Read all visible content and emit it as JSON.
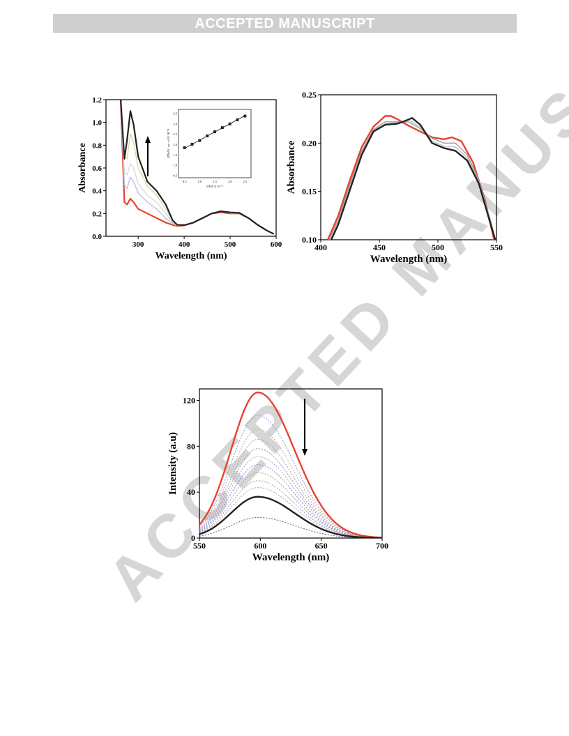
{
  "header": {
    "banner": "ACCEPTED MANUSCRIPT"
  },
  "watermark": "ACCEPTED MANUSCRIPT",
  "chart_data": [
    {
      "type": "line",
      "xlabel": "Wavelength (nm)",
      "ylabel": "Absorbance",
      "xlim": [
        230,
        600
      ],
      "ylim": [
        0,
        1.2
      ],
      "xticks": [
        300,
        400,
        500,
        600
      ],
      "yticks": [
        0.0,
        0.2,
        0.4,
        0.6,
        0.8,
        1.0,
        1.2
      ],
      "yticklabels": [
        "0.0",
        "0.2",
        "0.4",
        "0.6",
        "0.8",
        "1.0",
        "1.2"
      ],
      "annotation": "upward arrow: absorbance increases with DNA",
      "series": [
        {
          "color": "#e8432d",
          "x": [
            262,
            270,
            276,
            283,
            290,
            300,
            320,
            340,
            360,
            375,
            385,
            400,
            420,
            440,
            460,
            480,
            500,
            520,
            540,
            560,
            580,
            595
          ],
          "y": [
            1.2,
            0.3,
            0.28,
            0.33,
            0.3,
            0.24,
            0.2,
            0.16,
            0.12,
            0.1,
            0.09,
            0.095,
            0.12,
            0.16,
            0.2,
            0.21,
            0.2,
            0.2,
            0.16,
            0.1,
            0.05,
            0.02
          ]
        },
        {
          "color": "#b7c1e0",
          "x": [
            262,
            270,
            276,
            283,
            290,
            300,
            320,
            340,
            360,
            375,
            385,
            400,
            420,
            440,
            460,
            480,
            500,
            520,
            540,
            560,
            580,
            595
          ],
          "y": [
            1.2,
            0.45,
            0.42,
            0.52,
            0.48,
            0.38,
            0.3,
            0.24,
            0.16,
            0.11,
            0.095,
            0.098,
            0.12,
            0.16,
            0.2,
            0.22,
            0.205,
            0.2,
            0.16,
            0.1,
            0.05,
            0.02
          ]
        },
        {
          "color": "#d9d9d9",
          "x": [
            262,
            270,
            276,
            283,
            290,
            300,
            320,
            340,
            360,
            375,
            385,
            400,
            420,
            440,
            460,
            480,
            500,
            520,
            540,
            560,
            580,
            595
          ],
          "y": [
            1.2,
            0.56,
            0.54,
            0.64,
            0.6,
            0.46,
            0.36,
            0.3,
            0.2,
            0.12,
            0.097,
            0.098,
            0.12,
            0.16,
            0.2,
            0.22,
            0.21,
            0.205,
            0.16,
            0.1,
            0.05,
            0.02
          ]
        },
        {
          "color": "#cfe0a8",
          "x": [
            262,
            270,
            276,
            283,
            290,
            300,
            320,
            340,
            360,
            375,
            385,
            400,
            420,
            440,
            460,
            480,
            500,
            520,
            540,
            560,
            580,
            595
          ],
          "y": [
            1.2,
            0.7,
            0.68,
            0.9,
            0.82,
            0.6,
            0.44,
            0.36,
            0.24,
            0.13,
            0.098,
            0.098,
            0.12,
            0.16,
            0.2,
            0.22,
            0.21,
            0.21,
            0.16,
            0.1,
            0.05,
            0.02
          ]
        },
        {
          "color": "#222222",
          "x": [
            262,
            270,
            276,
            283,
            290,
            300,
            320,
            340,
            360,
            375,
            385,
            400,
            420,
            440,
            460,
            480,
            500,
            520,
            540,
            560,
            580,
            595
          ],
          "y": [
            1.2,
            0.68,
            0.85,
            1.1,
            0.98,
            0.7,
            0.48,
            0.4,
            0.28,
            0.14,
            0.1,
            0.098,
            0.12,
            0.16,
            0.2,
            0.22,
            0.21,
            0.205,
            0.16,
            0.1,
            0.05,
            0.02
          ]
        }
      ],
      "inset": {
        "type": "scatter",
        "xlabel": "DNA X 10⁻⁵",
        "ylabel": "[DNA] / εa - εf X 10⁻¹¹",
        "xlim": [
          0.3,
          2.7
        ],
        "ylim": [
          0.4,
          3.7
        ],
        "xticks": [
          0.5,
          1.0,
          1.5,
          2.0,
          2.5
        ],
        "xticklabels": [
          "0.5",
          "1.0",
          "1.5",
          "2.0",
          "2.5"
        ],
        "yticks": [
          0.5,
          1.0,
          1.5,
          2.0,
          2.5,
          3.0,
          3.5
        ],
        "yticklabels": [
          "0.5",
          "1.0",
          "1.5",
          "2.0",
          "2.5",
          "3.0",
          "3.5"
        ],
        "x": [
          0.5,
          0.75,
          1.0,
          1.25,
          1.5,
          1.75,
          2.0,
          2.25,
          2.5
        ],
        "y": [
          1.85,
          2.02,
          2.2,
          2.42,
          2.62,
          2.82,
          3.0,
          3.2,
          3.38
        ],
        "fit": [
          [
            0.5,
            1.82
          ],
          [
            2.5,
            3.4
          ]
        ]
      }
    },
    {
      "type": "line",
      "xlabel": "Wavelength (nm)",
      "ylabel": "Absorbance",
      "xlim": [
        400,
        550
      ],
      "ylim": [
        0.1,
        0.25
      ],
      "xticks": [
        400,
        450,
        500,
        550
      ],
      "yticks": [
        0.1,
        0.15,
        0.2,
        0.25
      ],
      "yticklabels": [
        "0.10",
        "0.15",
        "0.20",
        "0.25"
      ],
      "series": [
        {
          "color": "#e8432d",
          "x": [
            406,
            415,
            425,
            435,
            445,
            455,
            460,
            465,
            475,
            485,
            495,
            505,
            512,
            520,
            530,
            540,
            548
          ],
          "y": [
            0.1,
            0.125,
            0.162,
            0.196,
            0.217,
            0.228,
            0.228,
            0.225,
            0.218,
            0.212,
            0.206,
            0.204,
            0.206,
            0.202,
            0.18,
            0.142,
            0.1
          ]
        },
        {
          "color": "#999999",
          "x": [
            407,
            415,
            425,
            435,
            445,
            455,
            465,
            475,
            485,
            495,
            505,
            515,
            525,
            535,
            545,
            549
          ],
          "y": [
            0.1,
            0.121,
            0.158,
            0.192,
            0.214,
            0.222,
            0.222,
            0.222,
            0.215,
            0.205,
            0.2,
            0.2,
            0.188,
            0.162,
            0.12,
            0.1
          ]
        },
        {
          "color": "#bbbbcc",
          "x": [
            408,
            415,
            425,
            435,
            445,
            455,
            465,
            475,
            485,
            495,
            505,
            515,
            525,
            535,
            545,
            549
          ],
          "y": [
            0.1,
            0.119,
            0.155,
            0.19,
            0.213,
            0.22,
            0.221,
            0.224,
            0.217,
            0.202,
            0.197,
            0.196,
            0.185,
            0.16,
            0.118,
            0.1
          ]
        },
        {
          "color": "#222222",
          "x": [
            409,
            415,
            425,
            435,
            445,
            455,
            465,
            470,
            478,
            485,
            495,
            505,
            515,
            525,
            535,
            545,
            549
          ],
          "y": [
            0.1,
            0.116,
            0.152,
            0.188,
            0.212,
            0.219,
            0.22,
            0.222,
            0.226,
            0.219,
            0.2,
            0.195,
            0.192,
            0.182,
            0.158,
            0.116,
            0.1
          ]
        }
      ]
    },
    {
      "type": "line",
      "xlabel": "Wavelength (nm)",
      "ylabel": "Intensity (a.u)",
      "xlim": [
        550,
        700
      ],
      "ylim": [
        0,
        130
      ],
      "xticks": [
        550,
        600,
        650,
        700
      ],
      "yticks": [
        0,
        40,
        80,
        120
      ],
      "annotation": "downward arrow: intensity decreases",
      "peak_x": 598,
      "sigma_left": 22,
      "sigma_right": 30,
      "solid_series": [
        {
          "color": "#e8432d",
          "peak": 127
        },
        {
          "color": "#222222",
          "peak": 36
        }
      ],
      "dotted_series": [
        {
          "color": "#8f8fd8",
          "peak": 107
        },
        {
          "color": "#c8b49a",
          "peak": 95
        },
        {
          "color": "#9fa0d8",
          "peak": 86
        },
        {
          "color": "#b98c8c",
          "peak": 78
        },
        {
          "color": "#a7a7dd",
          "peak": 71
        },
        {
          "color": "#8a8ad0",
          "peak": 64
        },
        {
          "color": "#b0a090",
          "peak": 57
        },
        {
          "color": "#9f9fdd",
          "peak": 50
        },
        {
          "color": "#c4a4a4",
          "peak": 44
        },
        {
          "color": "#6a6a6a",
          "peak": 18
        }
      ]
    }
  ]
}
